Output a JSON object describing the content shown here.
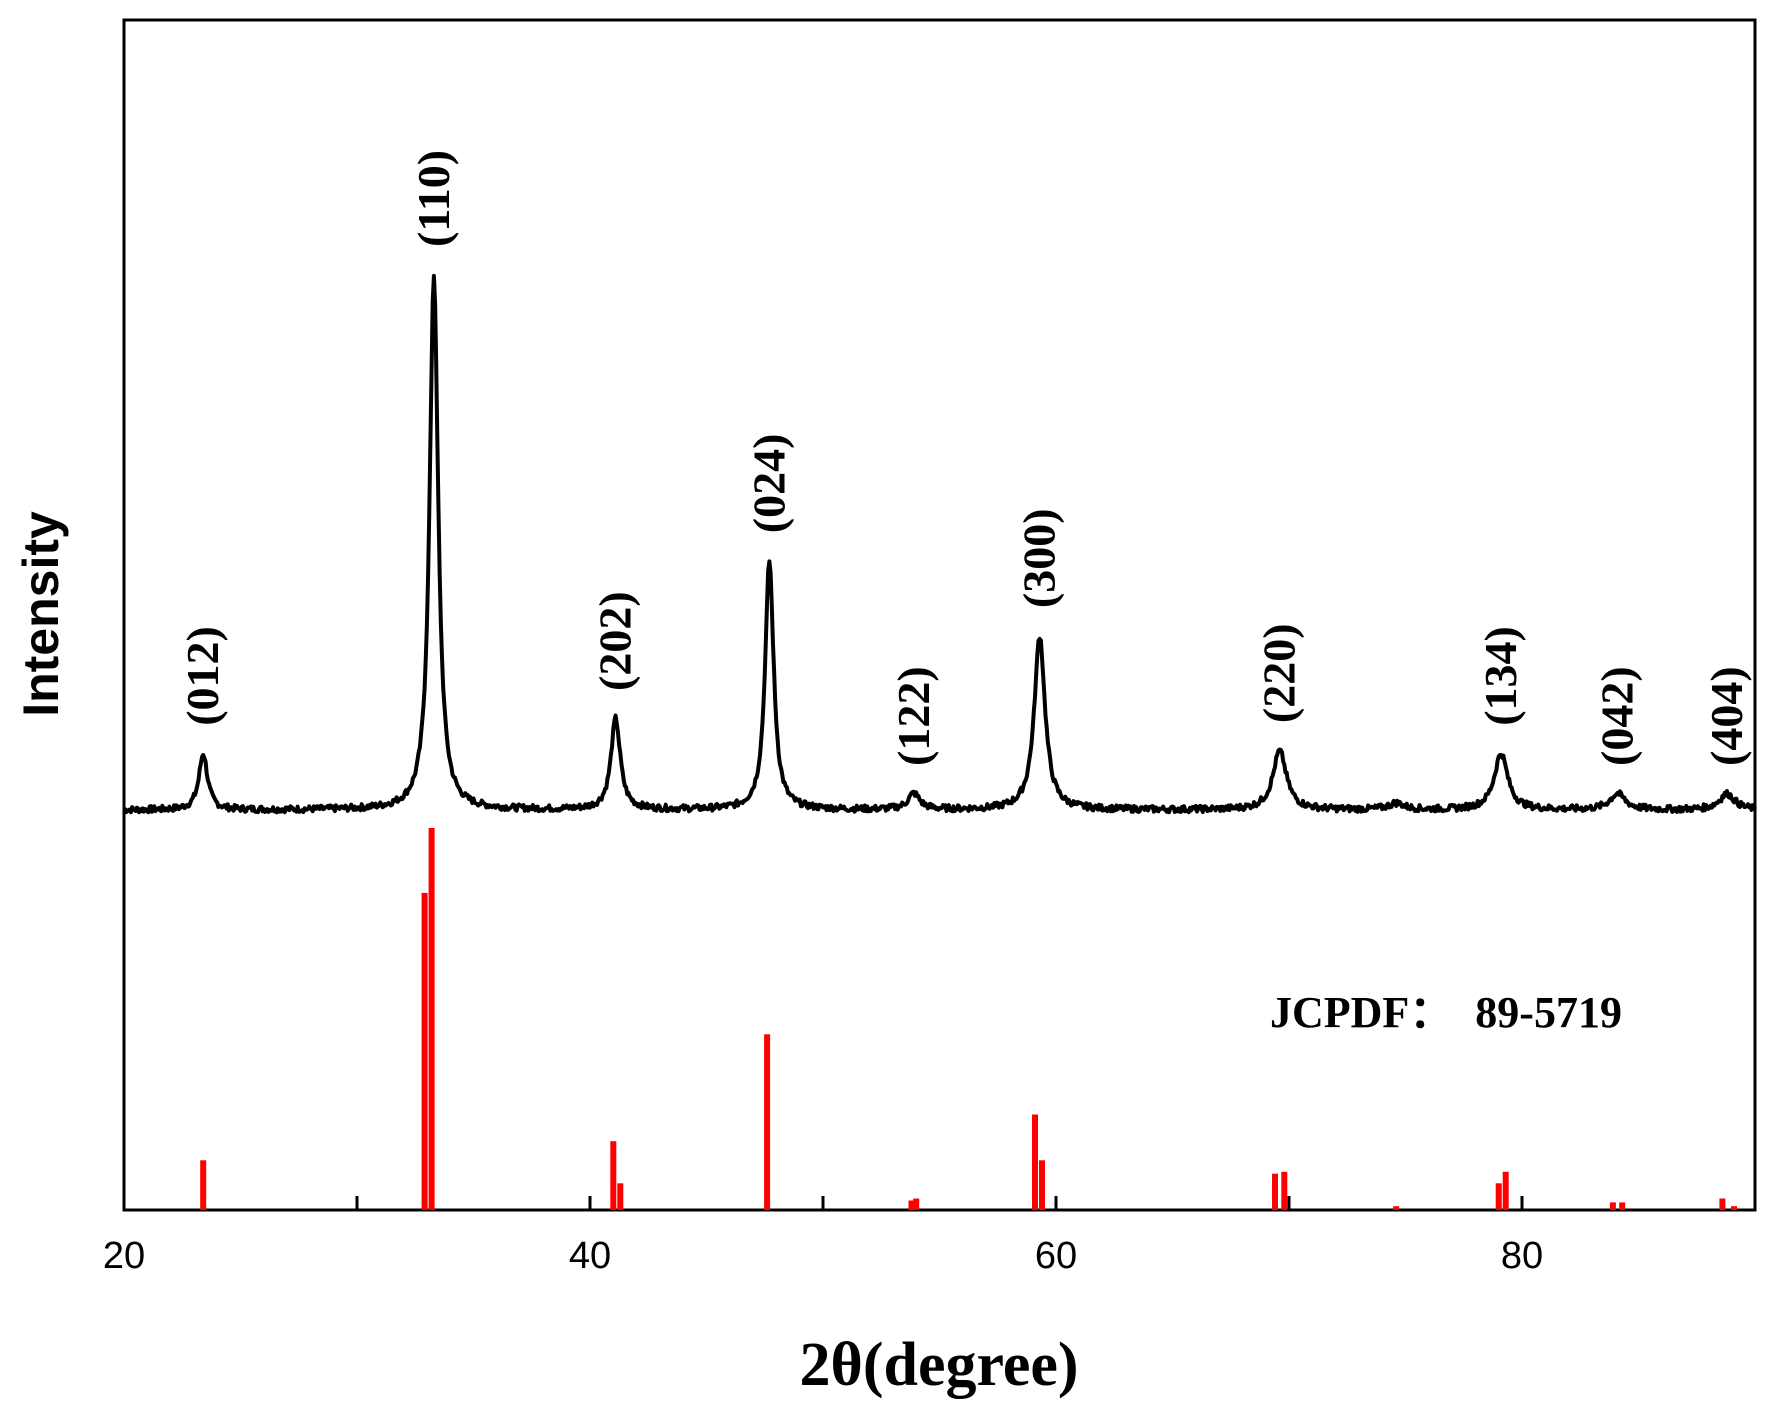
{
  "chart_data": {
    "type": "line",
    "title": "",
    "xlabel": "2θ(degree)",
    "ylabel": "Intensity",
    "xlim": [
      20,
      90
    ],
    "x_ticks": [
      20,
      40,
      60,
      80
    ],
    "y_ticks_shown": false,
    "grid": false,
    "colors": {
      "pattern": "#000000",
      "reference": "#ff0000",
      "axes": "#000000"
    },
    "peaks": [
      {
        "two_theta": 23.4,
        "height": 0.105,
        "width": 0.22,
        "label": "(012)"
      },
      {
        "two_theta": 33.3,
        "height": 1.0,
        "width": 0.22,
        "label": "(110)"
      },
      {
        "two_theta": 41.1,
        "height": 0.17,
        "width": 0.24,
        "label": "(202)"
      },
      {
        "two_theta": 47.7,
        "height": 0.465,
        "width": 0.22,
        "label": "(024)"
      },
      {
        "two_theta": 53.9,
        "height": 0.03,
        "width": 0.3,
        "label": "(122)"
      },
      {
        "two_theta": 59.3,
        "height": 0.325,
        "width": 0.28,
        "label": "(300)"
      },
      {
        "two_theta": 69.6,
        "height": 0.11,
        "width": 0.35,
        "label": "(220)"
      },
      {
        "two_theta": 74.6,
        "height": 0.012,
        "width": 0.4,
        "label": ""
      },
      {
        "two_theta": 79.1,
        "height": 0.105,
        "width": 0.35,
        "label": "(134)"
      },
      {
        "two_theta": 84.1,
        "height": 0.03,
        "width": 0.4,
        "label": "(042)"
      },
      {
        "two_theta": 88.8,
        "height": 0.03,
        "width": 0.4,
        "label": "(404)"
      }
    ],
    "reference": {
      "label": "JCPDF：  89-5719",
      "lines": [
        {
          "two_theta": 23.4,
          "intensity": 0.13
        },
        {
          "two_theta": 32.9,
          "intensity": 0.83
        },
        {
          "two_theta": 33.2,
          "intensity": 1.0
        },
        {
          "two_theta": 41.0,
          "intensity": 0.18
        },
        {
          "two_theta": 41.3,
          "intensity": 0.07
        },
        {
          "two_theta": 47.6,
          "intensity": 0.46
        },
        {
          "two_theta": 53.8,
          "intensity": 0.025
        },
        {
          "two_theta": 54.0,
          "intensity": 0.03
        },
        {
          "two_theta": 59.1,
          "intensity": 0.25
        },
        {
          "two_theta": 59.4,
          "intensity": 0.13
        },
        {
          "two_theta": 69.4,
          "intensity": 0.095
        },
        {
          "two_theta": 69.8,
          "intensity": 0.1
        },
        {
          "two_theta": 74.6,
          "intensity": 0.01
        },
        {
          "two_theta": 79.0,
          "intensity": 0.07
        },
        {
          "two_theta": 79.3,
          "intensity": 0.1
        },
        {
          "two_theta": 83.9,
          "intensity": 0.02
        },
        {
          "two_theta": 84.3,
          "intensity": 0.02
        },
        {
          "two_theta": 88.6,
          "intensity": 0.03
        },
        {
          "two_theta": 89.1,
          "intensity": 0.01
        }
      ]
    }
  }
}
